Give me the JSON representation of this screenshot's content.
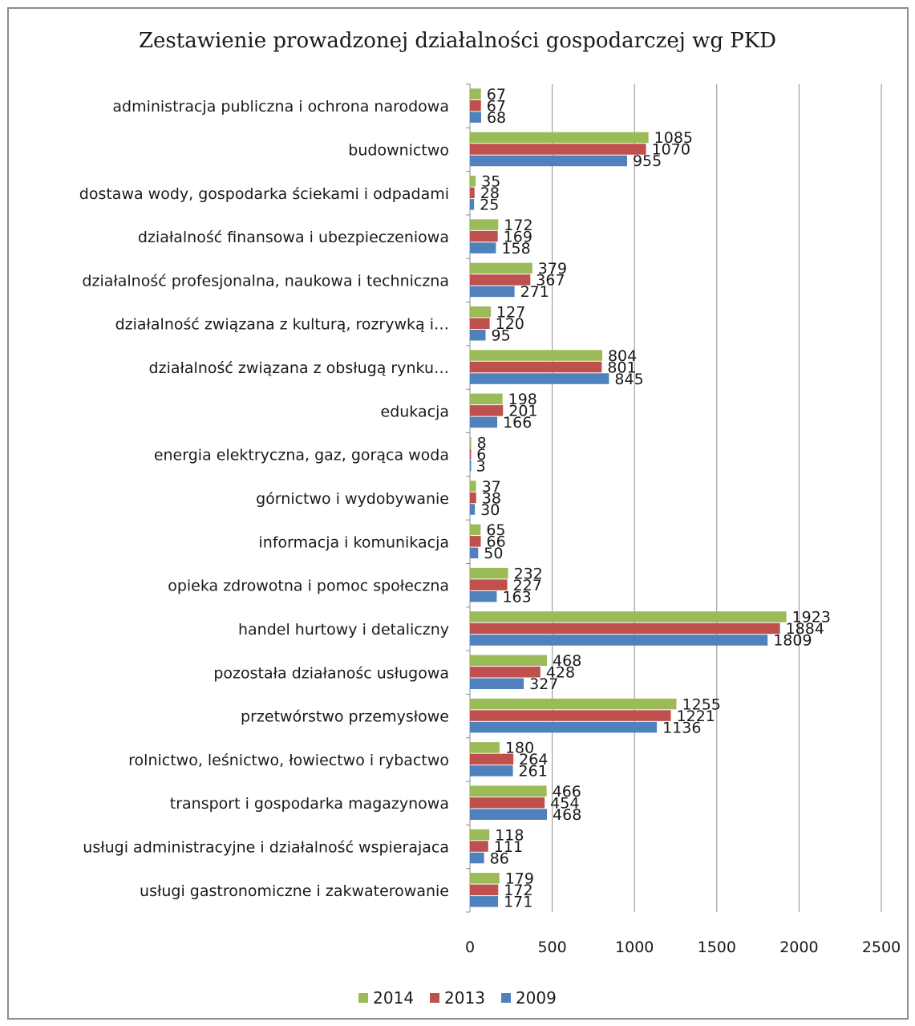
{
  "chart_data": {
    "type": "bar",
    "orientation": "horizontal",
    "title": "Zestawienie prowadzonej działalności gospodarczej wg PKD",
    "categories": [
      "administracja publiczna i ochrona narodowa",
      "budownictwo",
      "dostawa wody, gospodarka ściekami i odpadami",
      "działalność finansowa i ubezpieczeniowa",
      "działalność profesjonalna, naukowa i techniczna",
      "działalność związana z kulturą, rozrywką i…",
      "działalność związana z obsługą rynku…",
      "edukacja",
      "energia elektryczna, gaz, gorąca woda",
      "górnictwo i wydobywanie",
      "informacja i komunikacja",
      "opieka zdrowotna i pomoc społeczna",
      "handel hurtowy i detaliczny",
      "pozostała działanośc usługowa",
      "przetwórstwo przemysłowe",
      "rolnictwo, leśnictwo, łowiectwo i rybactwo",
      "transport i gospodarka magazynowa",
      "usługi administracyjne i działalność wspierajaca",
      "usługi gastronomiczne i zakwaterowanie"
    ],
    "series": [
      {
        "name": "2014",
        "color": "#9bbb59",
        "values": [
          67,
          1085,
          35,
          172,
          379,
          127,
          804,
          198,
          8,
          37,
          65,
          232,
          1923,
          468,
          1255,
          180,
          466,
          118,
          179
        ]
      },
      {
        "name": "2013",
        "color": "#c0504d",
        "values": [
          67,
          1070,
          28,
          169,
          367,
          120,
          801,
          201,
          6,
          38,
          66,
          227,
          1884,
          428,
          1221,
          264,
          454,
          111,
          172
        ]
      },
      {
        "name": "2009",
        "color": "#4f81bd",
        "values": [
          68,
          955,
          25,
          158,
          271,
          95,
          845,
          166,
          3,
          30,
          50,
          163,
          1809,
          327,
          1136,
          261,
          468,
          86,
          171
        ]
      }
    ],
    "xlim": [
      0,
      2500
    ],
    "xticks": [
      "0",
      "500",
      "1000",
      "1500",
      "2000",
      "2500"
    ],
    "grid": true,
    "legend_position": "bottom"
  }
}
